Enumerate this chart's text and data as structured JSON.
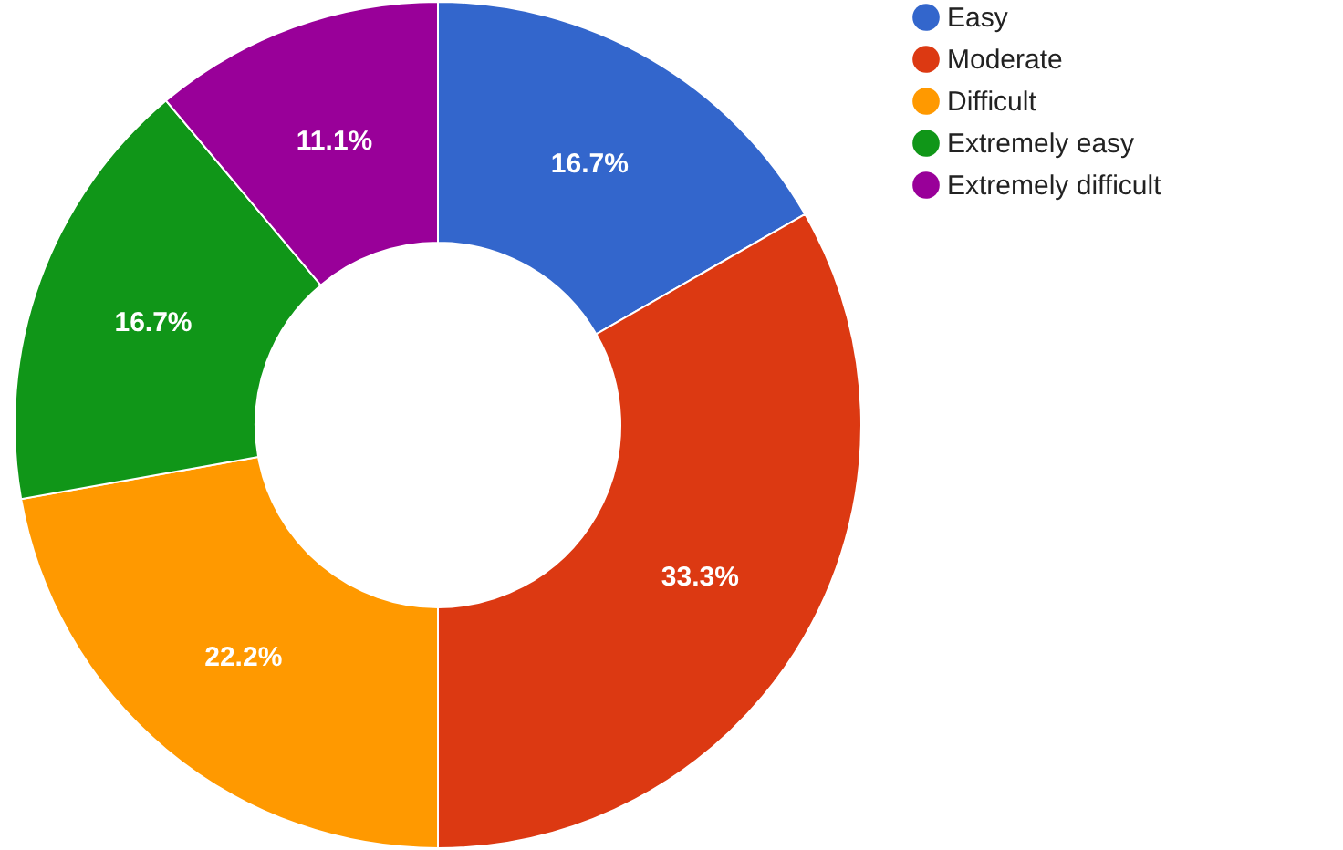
{
  "chart_data": {
    "type": "donut",
    "categories": [
      "Easy",
      "Moderate",
      "Difficult",
      "Extremely easy",
      "Extremely difficult"
    ],
    "values": [
      16.7,
      33.3,
      22.2,
      16.7,
      11.1
    ],
    "colors": [
      "#3366cc",
      "#dc3912",
      "#ff9900",
      "#109618",
      "#990099"
    ],
    "value_labels": [
      "16.7%",
      "33.3%",
      "22.2%",
      "16.7%",
      "11.1%"
    ],
    "legend": "top right"
  }
}
